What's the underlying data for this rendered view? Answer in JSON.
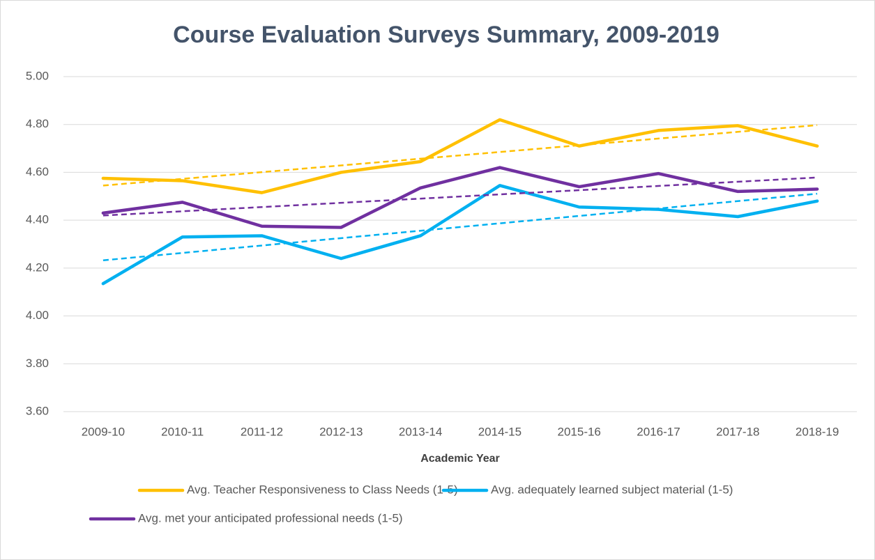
{
  "chart_data": {
    "type": "line",
    "title": "Course Evaluation Surveys Summary, 2009-2019",
    "x_label": "Academic Year",
    "categories": [
      "2009-10",
      "2010-11",
      "2011-12",
      "2012-13",
      "2013-14",
      "2014-15",
      "2015-16",
      "2016-17",
      "2017-18",
      "2018-19"
    ],
    "series": [
      {
        "name": "Avg. Teacher Responsiveness to Class Needs (1-5)",
        "color": "#ffc000",
        "values": [
          4.575,
          4.565,
          4.515,
          4.6,
          4.645,
          4.82,
          4.71,
          4.775,
          4.795,
          4.71
        ]
      },
      {
        "name": "Avg. adequately learned subject material (1-5)",
        "color": "#00b0f0",
        "values": [
          4.135,
          4.33,
          4.335,
          4.24,
          4.335,
          4.545,
          4.455,
          4.445,
          4.415,
          4.48
        ]
      },
      {
        "name": "Avg. met your anticipated professional needs (1-5)",
        "color": "#7030a0",
        "values": [
          4.43,
          4.475,
          4.375,
          4.37,
          4.535,
          4.62,
          4.54,
          4.595,
          4.52,
          4.53
        ]
      }
    ],
    "ylim": [
      3.6,
      5.0
    ],
    "yticks": [
      {
        "value": 3.6,
        "label": "3.60"
      },
      {
        "value": 3.8,
        "label": "3.80"
      },
      {
        "value": 4.0,
        "label": "4.00"
      },
      {
        "value": 4.2,
        "label": "4.20"
      },
      {
        "value": 4.4,
        "label": "4.40"
      },
      {
        "value": 4.6,
        "label": "4.60"
      },
      {
        "value": 4.8,
        "label": "4.80"
      },
      {
        "value": 5.0,
        "label": "5.00"
      }
    ],
    "grid": true,
    "trendline": "linear",
    "legend": "bottom"
  }
}
